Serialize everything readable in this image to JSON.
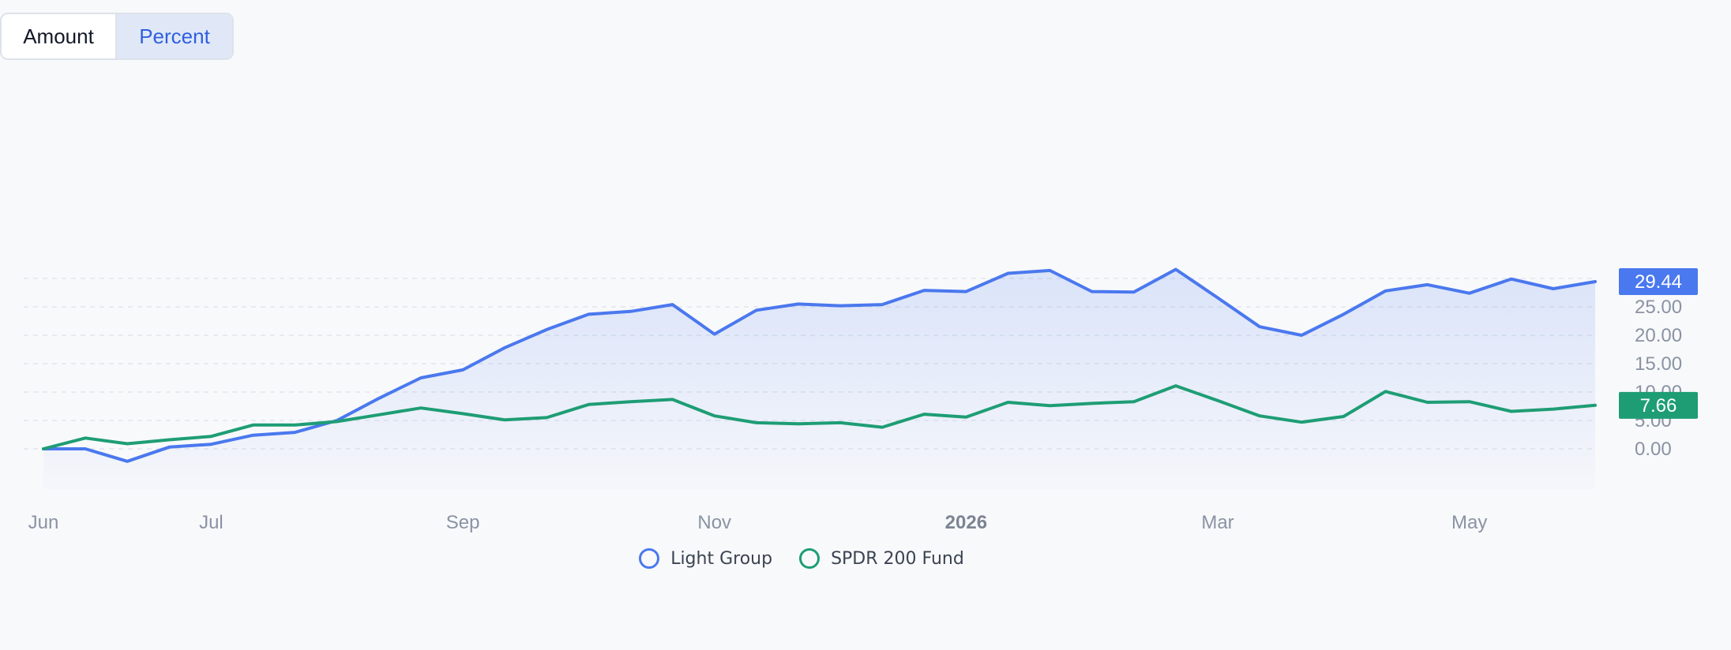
{
  "toggle": {
    "amount_label": "Amount",
    "percent_label": "Percent",
    "active": "Percent",
    "active_color": "#2f5fe0"
  },
  "chart_data": {
    "type": "line",
    "x_tick_labels": [
      "Jun",
      "Jul",
      "Sep",
      "Nov",
      "2026",
      "Mar",
      "May"
    ],
    "x_tick_bold": "2026",
    "y_tick_labels": [
      "0.00",
      "5.00",
      "10.00",
      "15.00",
      "20.00",
      "25.00",
      "30.00"
    ],
    "ylim": [
      -3.5,
      31
    ],
    "grid": true,
    "grid_style": "dashed horizontal",
    "legend_position": "bottom-center",
    "series": [
      {
        "name": "Light Group",
        "color": "#4a78ee",
        "fill": "area-gradient",
        "last_value_label": "29.44",
        "values": [
          0.0,
          0.0,
          -2.2,
          0.3,
          0.8,
          2.4,
          2.9,
          5.0,
          8.9,
          12.5,
          13.9,
          17.8,
          21.0,
          23.7,
          24.2,
          25.4,
          20.2,
          24.4,
          25.5,
          25.2,
          25.4,
          27.9,
          27.7,
          30.9,
          31.4,
          27.7,
          27.6,
          31.6,
          26.6,
          21.5,
          20.0,
          23.7,
          27.8,
          28.9,
          27.4,
          29.9,
          28.2,
          29.44
        ]
      },
      {
        "name": "SPDR 200 Fund",
        "color": "#1e9d74",
        "last_value_label": "7.66",
        "values": [
          0.0,
          1.9,
          0.9,
          1.6,
          2.2,
          4.2,
          4.2,
          4.8,
          6.0,
          7.2,
          6.2,
          5.1,
          5.5,
          7.8,
          8.3,
          8.7,
          5.8,
          4.6,
          4.4,
          4.6,
          3.8,
          6.1,
          5.6,
          8.2,
          7.6,
          8.0,
          8.3,
          11.1,
          8.5,
          5.8,
          4.7,
          5.7,
          10.1,
          8.2,
          8.3,
          6.6,
          7.0,
          7.66
        ]
      }
    ]
  }
}
